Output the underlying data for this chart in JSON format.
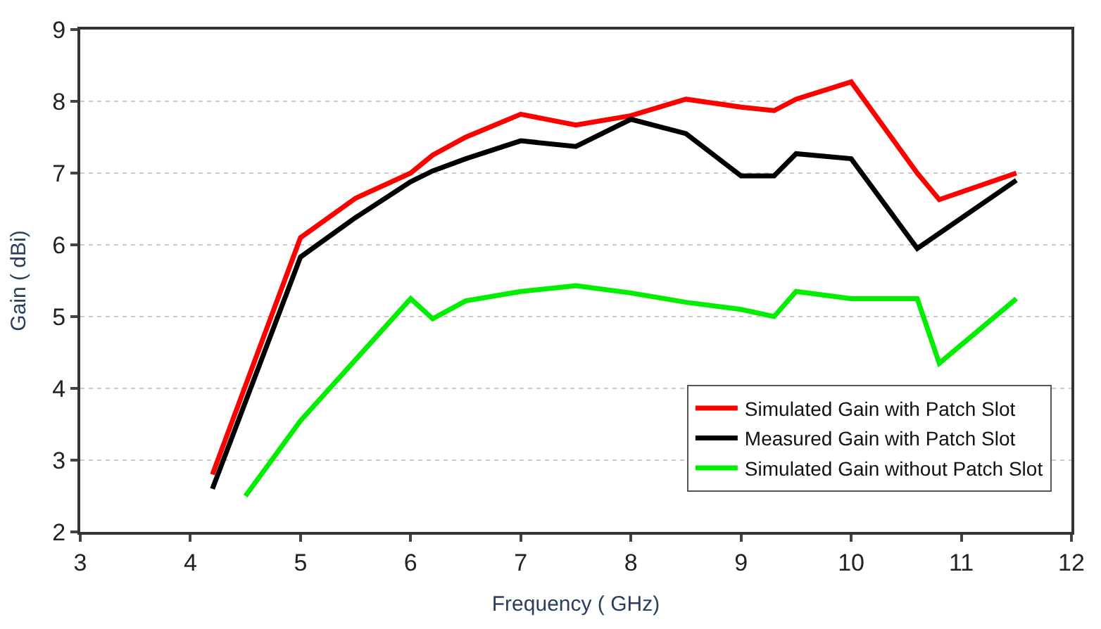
{
  "chart_data": {
    "type": "line",
    "xlabel": "Frequency ( GHz)",
    "ylabel": "Gain ( dBi)",
    "xlim": [
      3,
      12
    ],
    "xticks": [
      3,
      4,
      5,
      6,
      7,
      8,
      9,
      10,
      11,
      12
    ],
    "ylim": [
      2,
      9
    ],
    "yticks": [
      2,
      3,
      4,
      5,
      6,
      7,
      8,
      9
    ],
    "grid": "y",
    "legend": "bottom right",
    "marker": "none",
    "line_style": "solid",
    "series": [
      {
        "name": "Simulated Gain with Patch Slot",
        "color": "#ff0000",
        "x": [
          4.2,
          5,
          5.5,
          6,
          6.2,
          6.5,
          7,
          7.5,
          8,
          8.5,
          9,
          9.3,
          9.5,
          10,
          10.6,
          10.8,
          11.5
        ],
        "values": [
          2.8,
          6.1,
          6.65,
          7.0,
          7.25,
          7.5,
          7.82,
          7.67,
          7.8,
          8.03,
          7.92,
          7.87,
          8.03,
          8.27,
          7.0,
          6.63,
          7.0
        ]
      },
      {
        "name": "Measured Gain with Patch Slot",
        "color": "#000000",
        "x": [
          4.2,
          5,
          5.5,
          6,
          6.2,
          6.5,
          7,
          7.5,
          8,
          8.5,
          9,
          9.3,
          9.5,
          10,
          10.6,
          11.5
        ],
        "values": [
          2.6,
          5.83,
          6.38,
          6.88,
          7.03,
          7.2,
          7.45,
          7.37,
          7.75,
          7.55,
          6.96,
          6.96,
          7.27,
          7.2,
          5.95,
          6.9
        ]
      },
      {
        "name": "Simulated Gain without Patch Slot",
        "color": "#00ee00",
        "x": [
          4.5,
          5,
          6,
          6.2,
          6.5,
          7,
          7.5,
          8,
          8.5,
          9,
          9.3,
          9.5,
          10,
          10.6,
          10.8,
          11.5
        ],
        "values": [
          2.5,
          3.55,
          5.25,
          4.97,
          5.22,
          5.35,
          5.43,
          5.33,
          5.2,
          5.1,
          5.0,
          5.35,
          5.25,
          5.25,
          4.35,
          5.25
        ]
      }
    ]
  }
}
